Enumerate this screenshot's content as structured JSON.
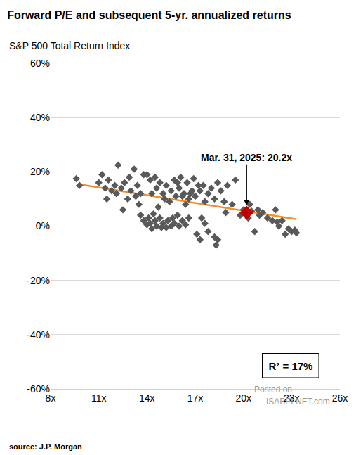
{
  "chart_data": {
    "type": "scatter",
    "title": "Forward P/E and subsequent 5-yr. annualized returns",
    "subtitle": "S&P 500 Total Return Index",
    "source": "source: J.P. Morgan",
    "watermark": [
      "Posted on",
      "ISABELNET.com"
    ],
    "xlim": [
      8,
      26
    ],
    "xticks": [
      {
        "value": 8,
        "label": "8x"
      },
      {
        "value": 11,
        "label": "11x"
      },
      {
        "value": 14,
        "label": "14x"
      },
      {
        "value": 17,
        "label": "17x"
      },
      {
        "value": 20,
        "label": "20x"
      },
      {
        "value": 23,
        "label": "23x"
      },
      {
        "value": 26,
        "label": "26x"
      }
    ],
    "ylim": [
      -60,
      60
    ],
    "yticks": [
      {
        "value": -60,
        "label": "-60%"
      },
      {
        "value": -40,
        "label": "-40%"
      },
      {
        "value": -20,
        "label": "-20%"
      },
      {
        "value": 0,
        "label": "0%"
      },
      {
        "value": 20,
        "label": "20%"
      },
      {
        "value": 40,
        "label": "40%"
      },
      {
        "value": 60,
        "label": "60%"
      }
    ],
    "grid": true,
    "series": [
      {
        "type": "scatter",
        "color": "#595959",
        "marker": "diamond",
        "x": [
          9.6,
          9.8,
          11,
          11.2,
          11.4,
          11.6,
          11.8,
          12,
          12.2,
          12.4,
          12.6,
          12.8,
          13,
          13.2,
          11.5,
          12.1,
          12.9,
          13.4,
          13.6,
          13.8,
          14,
          14.2,
          14.3,
          14.5,
          13.5,
          13.3,
          12.5,
          13.6,
          13.8,
          14,
          14.1,
          14.2,
          14.3,
          14.5,
          14.6,
          14.8,
          15,
          15.2,
          15.3,
          15.5,
          15.7,
          15.9,
          16,
          16.2,
          16.4,
          14.4,
          14.9,
          15.6,
          16.6,
          14.6,
          14.8,
          15,
          15.2,
          15.4,
          15.5,
          15.7,
          15.8,
          16,
          16.1,
          16.3,
          16.5,
          16.6,
          16.8,
          16.9,
          17,
          17.2,
          16.4,
          15.1,
          14.7,
          15.9,
          16.7,
          17.3,
          17.6,
          16.2,
          17.1,
          17.3,
          17.6,
          17.8,
          18.2,
          18.3,
          18.4,
          17.4,
          17.5,
          17.8,
          18,
          18.2,
          18.4,
          18.6,
          18.8,
          19,
          19.5,
          18.9,
          19.3,
          19.8,
          20,
          20.3,
          20.4,
          20.5,
          20.7,
          20.9,
          21,
          21.2,
          21.5,
          21.8,
          22,
          22.2,
          22.4,
          22.6,
          22.8,
          23,
          23.2,
          23.3,
          22.1
        ],
        "values": [
          17.5,
          15,
          16,
          19,
          14,
          17,
          13,
          15,
          22.5,
          14,
          16,
          10,
          13,
          21,
          10,
          12,
          18,
          15,
          12,
          19,
          19,
          17,
          12,
          18,
          8,
          11,
          6,
          4,
          2,
          0.5,
          3,
          1,
          -1,
          2,
          0,
          3,
          1,
          -0.5,
          2,
          0,
          1,
          4,
          0,
          2,
          0.5,
          4.5,
          -0.5,
          3,
          3,
          14,
          16,
          12,
          15,
          9,
          13,
          17,
          11,
          14,
          18,
          12,
          16,
          10,
          13,
          17.5,
          11,
          15,
          8,
          10,
          7,
          16,
          12,
          13,
          9,
          11,
          -3,
          -5,
          1,
          -2,
          -4,
          -7,
          -5,
          3,
          15,
          12,
          14,
          10,
          16,
          13,
          9,
          15,
          17,
          5,
          8,
          4,
          6,
          3,
          8,
          5.5,
          -2,
          6,
          4,
          5,
          3,
          2,
          6,
          0,
          2,
          -3,
          -1,
          -2,
          -1.5,
          -2.5,
          1.5
        ]
      },
      {
        "type": "line",
        "color": "#F28E2B",
        "x": [
          9.7,
          23.3
        ],
        "values": [
          15.5,
          2.5
        ]
      },
      {
        "type": "scatter",
        "color": "#C00000",
        "marker": "diamond",
        "x": [
          20.2
        ],
        "values": [
          5
        ]
      }
    ],
    "annotations": [
      {
        "text": "Mar. 31, 2025: 20.2x",
        "x": 20.2,
        "y": 5
      }
    ],
    "stat_label": "R² = 17%"
  }
}
